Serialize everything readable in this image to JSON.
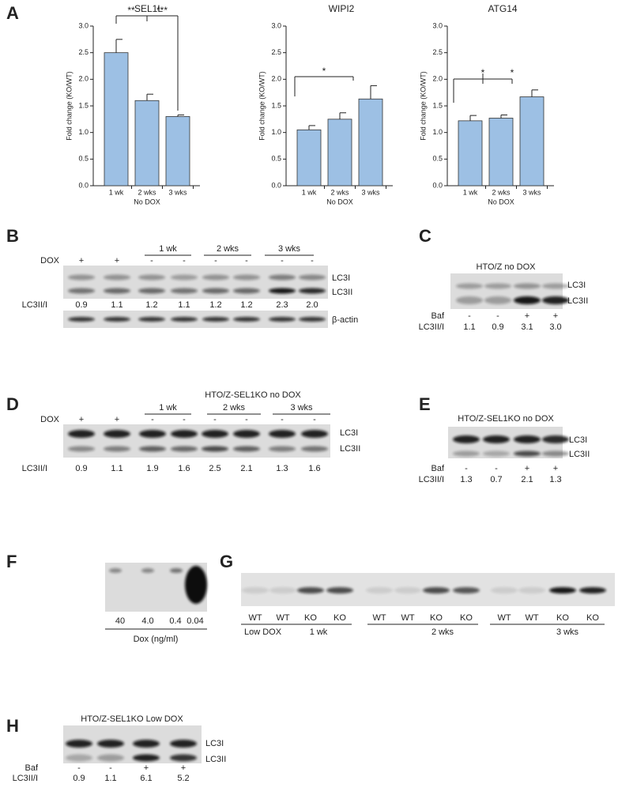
{
  "chart_data": [
    {
      "type": "bar",
      "panel": "A",
      "title": "SEL1L",
      "y_label": "Fold change (KO/WT)",
      "categories": [
        "1 wk",
        "2 wks",
        "3 wks"
      ],
      "x_sublabel": "No DOX",
      "series": [
        {
          "color": "#9dc0e4",
          "values": [
            2.5,
            1.6,
            1.3
          ],
          "errors": [
            0.25,
            0.12,
            0.03
          ]
        }
      ],
      "ylim": [
        0,
        3
      ],
      "yticks": [
        {
          "value": 0,
          "label": "0.0"
        },
        0.5,
        {
          "value": 1,
          "label": "1.0"
        },
        1.5,
        {
          "value": 2,
          "label": "2.0"
        },
        2.5,
        {
          "value": 3,
          "label": "3.0"
        }
      ],
      "annotations": [
        {
          "text": "**"
        },
        {
          "text": "***"
        }
      ]
    },
    {
      "type": "bar",
      "title": "WIPI2",
      "y_label": "Fold change (KO/WT)",
      "categories": [
        "1 wk",
        "2 wks",
        "3 wks"
      ],
      "x_sublabel": "No DOX",
      "series": [
        {
          "color": "#9dc0e4",
          "values": [
            1.05,
            1.25,
            1.63
          ],
          "errors": [
            0.08,
            0.12,
            0.25
          ]
        }
      ],
      "ylim": [
        0,
        3
      ],
      "yticks": [
        {
          "value": 0,
          "label": "0.0"
        },
        0.5,
        {
          "value": 1,
          "label": "1.0"
        },
        1.5,
        {
          "value": 2,
          "label": "2.0"
        },
        2.5,
        {
          "value": 3,
          "label": "3.0"
        }
      ],
      "annotations": [
        {
          "text": "*"
        }
      ]
    },
    {
      "type": "bar",
      "title": "ATG14",
      "y_label": "Fold change (KO/WT)",
      "categories": [
        "1 wk",
        "2 wks",
        "3 wks"
      ],
      "x_sublabel": "No DOX",
      "series": [
        {
          "color": "#9dc0e4",
          "values": [
            1.22,
            1.27,
            1.67
          ],
          "errors": [
            0.1,
            0.06,
            0.13
          ]
        }
      ],
      "ylim": [
        0,
        3
      ],
      "yticks": [
        {
          "value": 0,
          "label": "0.0"
        },
        0.5,
        {
          "value": 1,
          "label": "1.0"
        },
        1.5,
        {
          "value": 2,
          "label": "2.0"
        },
        2.5,
        {
          "value": 3,
          "label": "3.0"
        }
      ],
      "annotations": [
        {
          "text": "*"
        },
        {
          "text": "*"
        }
      ]
    }
  ],
  "panels": {
    "B": {
      "letter": "B",
      "groups": [
        "1 wk",
        "2 wks",
        "3 wks"
      ],
      "row_label": "DOX",
      "signs": [
        "+",
        "+",
        "-",
        "-",
        "-",
        "-",
        "-",
        "-"
      ],
      "bands": [
        "LC3I",
        "LC3II"
      ],
      "ratio_label": "LC3II/I",
      "ratios": [
        "0.9",
        "1.1",
        "1.2",
        "1.1",
        "1.2",
        "1.2",
        "2.3",
        "2.0"
      ],
      "loading": "β-actin"
    },
    "C": {
      "letter": "C",
      "title": "HTO/Z no DOX",
      "bands": [
        "LC3I",
        "LC3II"
      ],
      "row_label": "Baf",
      "signs": [
        "-",
        "-",
        "+",
        "+"
      ],
      "ratio_label": "LC3II/I",
      "ratios": [
        "1.1",
        "0.9",
        "3.1",
        "3.0"
      ]
    },
    "D": {
      "letter": "D",
      "title": "HTO/Z-SEL1KO no DOX",
      "groups": [
        "1 wk",
        "2 wks",
        "3 wks"
      ],
      "row_label": "DOX",
      "signs": [
        "+",
        "+",
        "-",
        "-",
        "-",
        "-",
        "-",
        "-"
      ],
      "bands": [
        "LC3I",
        "LC3II"
      ],
      "ratio_label": "LC3II/I",
      "ratios": [
        "0.9",
        "1.1",
        "1.9",
        "1.6",
        "2.5",
        "2.1",
        "1.3",
        "1.6"
      ]
    },
    "E": {
      "letter": "E",
      "title": "HTO/Z-SEL1KO no DOX",
      "bands": [
        "LC3I",
        "LC3II"
      ],
      "row_label": "Baf",
      "signs": [
        "-",
        "-",
        "+",
        "+"
      ],
      "ratio_label": "LC3II/I",
      "ratios": [
        "1.3",
        "0.7",
        "2.1",
        "1.3"
      ]
    },
    "F": {
      "letter": "F",
      "lanes": [
        "40",
        "4.0",
        "0.4",
        "0.04"
      ],
      "axis_label": "Dox (ng/ml)"
    },
    "G": {
      "letter": "G",
      "lanes": [
        "WT",
        "WT",
        "KO",
        "KO",
        "WT",
        "WT",
        "KO",
        "KO",
        "WT",
        "WT",
        "KO",
        "KO"
      ],
      "row_label": "Low DOX",
      "groups": [
        "1 wk",
        "2 wks",
        "3 wks"
      ]
    },
    "H": {
      "letter": "H",
      "title": "HTO/Z-SEL1KO Low DOX",
      "bands": [
        "LC3I",
        "LC3II"
      ],
      "row_label": "Baf",
      "signs": [
        "-",
        "-",
        "+",
        "+"
      ],
      "ratio_label": "LC3II/I",
      "ratios": [
        "0.9",
        "1.1",
        "6.1",
        "5.2"
      ]
    }
  }
}
